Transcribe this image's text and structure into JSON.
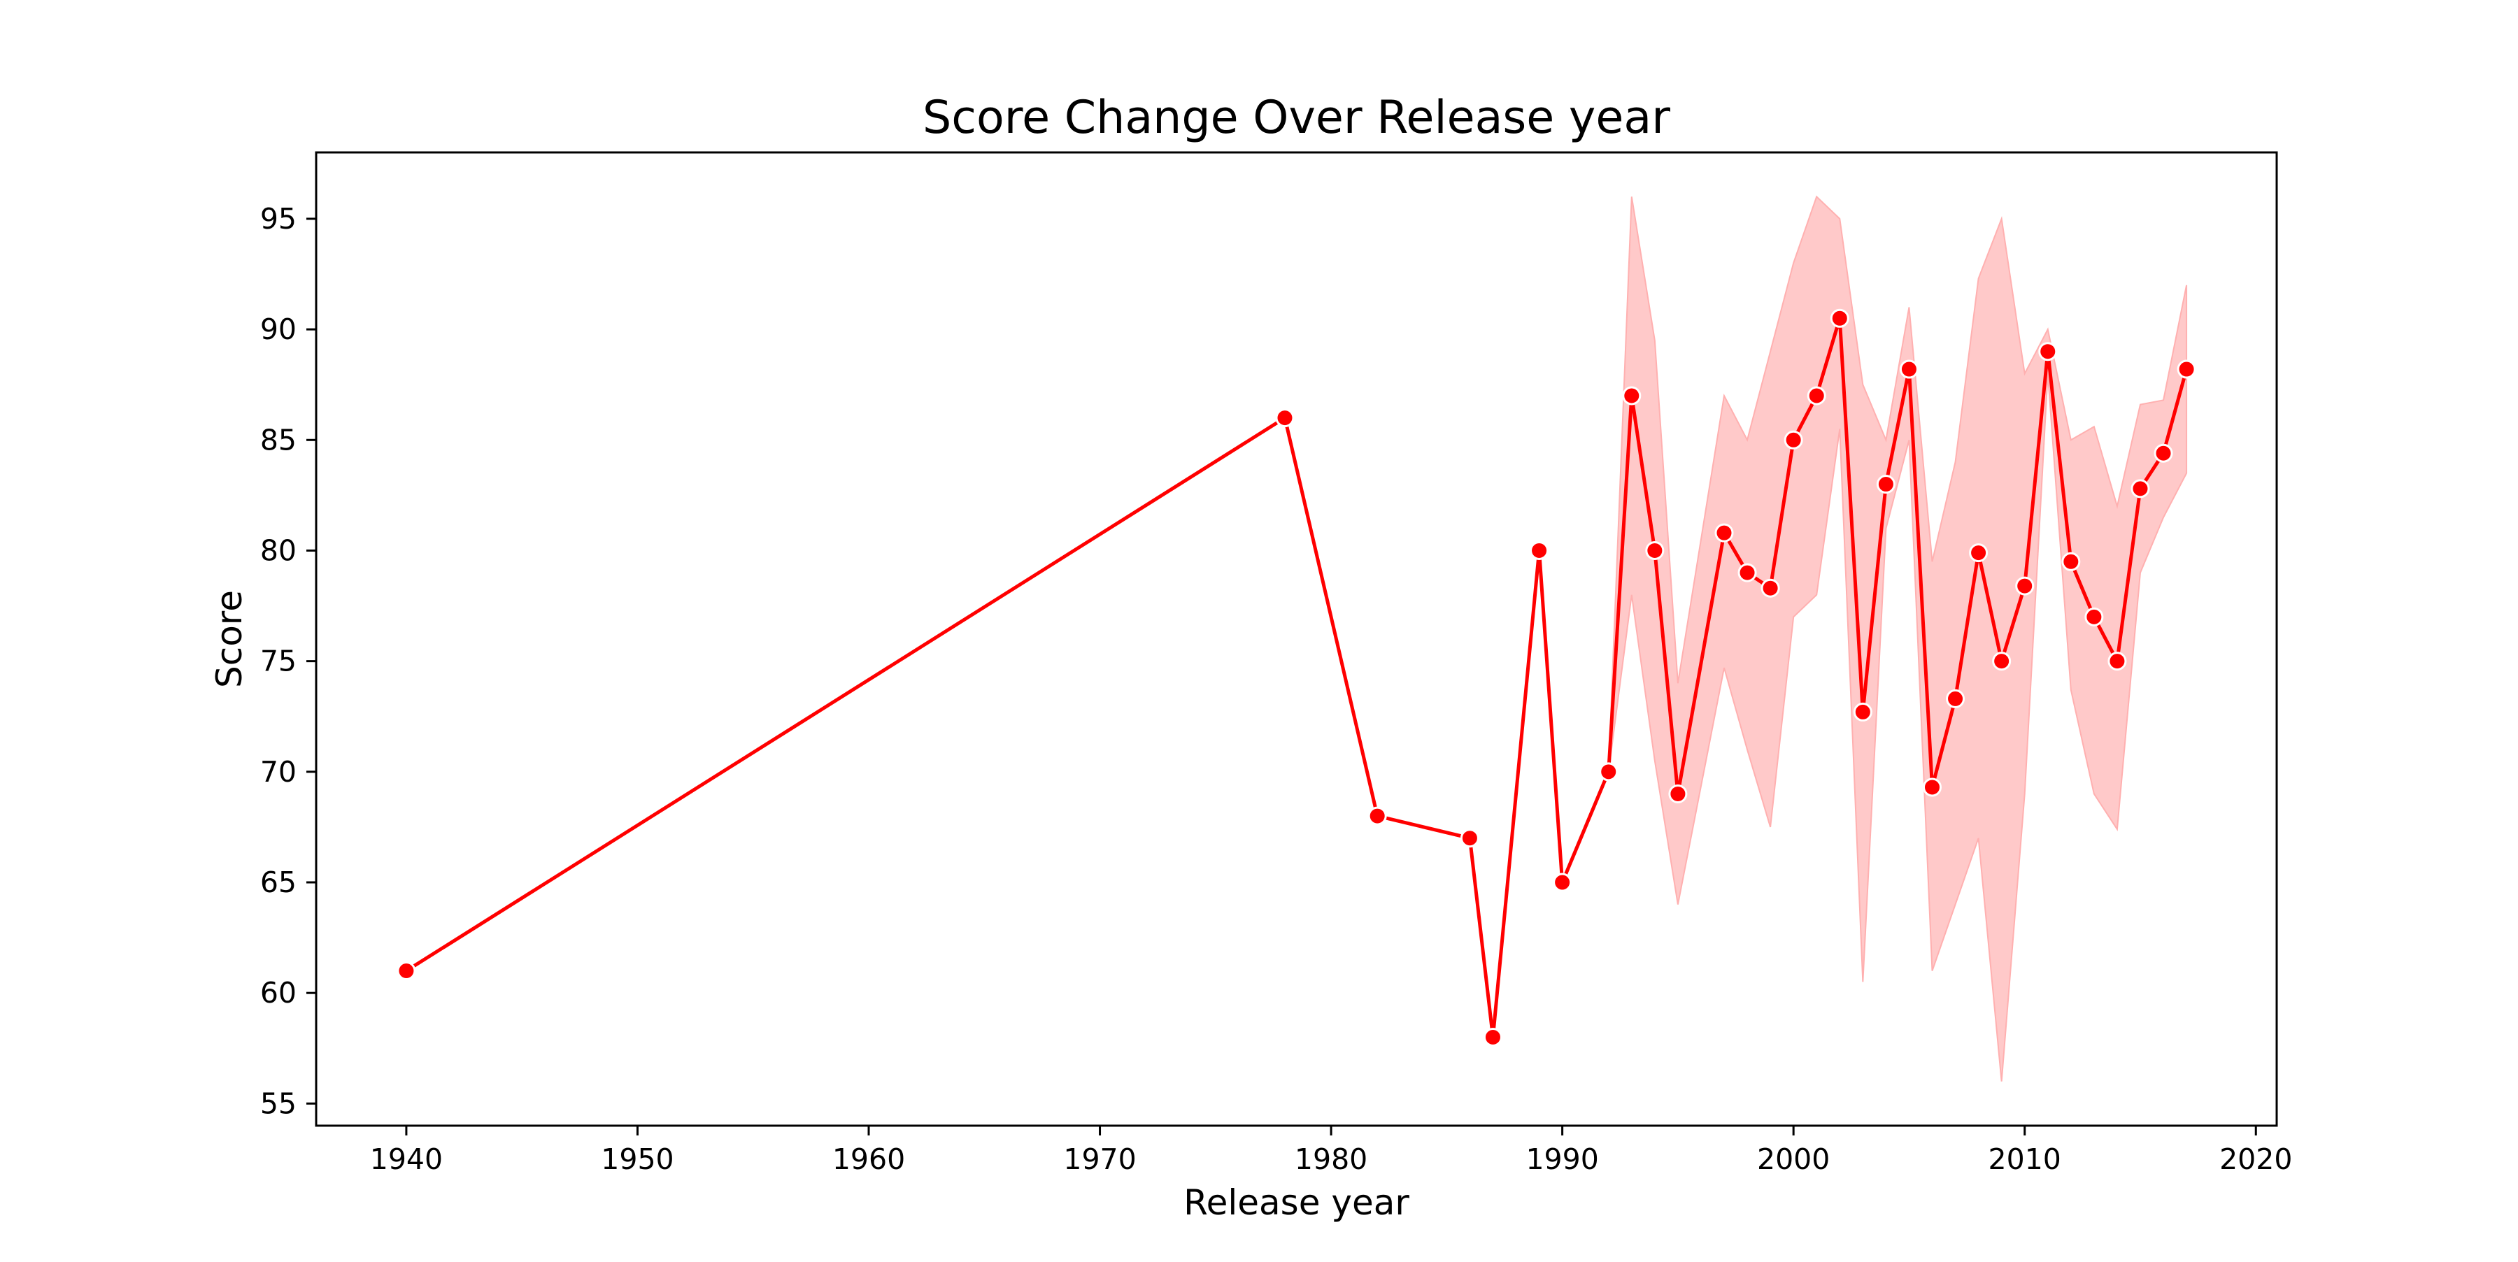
{
  "chart_data": {
    "type": "line",
    "title": "Score Change Over Release year",
    "xlabel": "Release year",
    "ylabel": "Score",
    "xlim": [
      1936.1,
      2020.9
    ],
    "ylim": [
      54.0,
      98.0
    ],
    "xticks": [
      1940,
      1950,
      1960,
      1970,
      1980,
      1990,
      2000,
      2010,
      2020
    ],
    "yticks": [
      55,
      60,
      65,
      70,
      75,
      80,
      85,
      90,
      95
    ],
    "grid": false,
    "legend": null,
    "colors": {
      "line": "#ff0000",
      "band": "#ffc9c9",
      "band_edge": "#ffb0b0",
      "marker_edge": "#ffffff"
    },
    "series": [
      {
        "x": [
          1940,
          1978,
          1982,
          1986,
          1987,
          1989,
          1990,
          1992,
          1993,
          1994,
          1995,
          1997,
          1998,
          1999,
          2000,
          2001,
          2002,
          2003,
          2004,
          2005,
          2006,
          2007,
          2008,
          2009,
          2010,
          2011,
          2012,
          2013,
          2014,
          2015,
          2016,
          2017
        ],
        "y": [
          61,
          86,
          68,
          67,
          58,
          80,
          65,
          70,
          87,
          80,
          69,
          80.8,
          79,
          78.3,
          85,
          87,
          90.5,
          72.7,
          83,
          88.2,
          69.3,
          73.3,
          79.9,
          75,
          78.4,
          89,
          79.5,
          77,
          75,
          82.8,
          84.4,
          88.2
        ],
        "ci_lower": [
          61,
          86,
          68,
          67,
          58,
          80,
          65,
          70,
          78,
          70.5,
          64,
          74.7,
          71,
          67.5,
          77,
          78,
          85.5,
          60.5,
          81,
          85,
          61,
          64,
          67,
          56,
          69,
          88,
          73.7,
          69,
          67.4,
          79,
          81.5,
          83.5
        ],
        "ci_upper": [
          61,
          86,
          68,
          67,
          58,
          80,
          65,
          70,
          96,
          89.5,
          74,
          87,
          85,
          89,
          93,
          96,
          95,
          87.5,
          85,
          91,
          79.5,
          84,
          92.3,
          95,
          88,
          90,
          85,
          85.6,
          82,
          86.6,
          86.8,
          92
        ]
      }
    ]
  }
}
